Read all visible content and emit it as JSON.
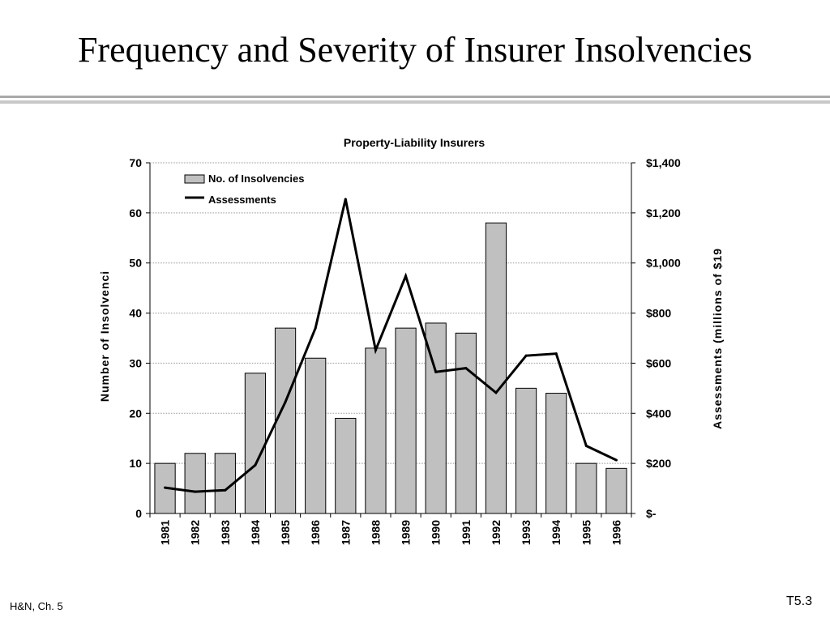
{
  "slide": {
    "title": "Frequency and Severity of Insurer Insolvencies",
    "footer_left": "H&N, Ch. 5",
    "footer_right": "T5.3"
  },
  "chart_data": {
    "type": "bar",
    "title": "Property-Liability Insurers",
    "ylabel": "Number of Insolvenci",
    "y2label": "Assessments (millions of $19",
    "categories": [
      "1981",
      "1982",
      "1983",
      "1984",
      "1985",
      "1986",
      "1987",
      "1988",
      "1989",
      "1990",
      "1991",
      "1992",
      "1993",
      "1994",
      "1995",
      "1996"
    ],
    "series": [
      {
        "name": "No. of Insolvencies",
        "type": "bar",
        "axis": "left",
        "values": [
          10,
          12,
          12,
          28,
          37,
          31,
          19,
          33,
          37,
          38,
          36,
          58,
          25,
          24,
          10,
          9
        ]
      },
      {
        "name": "Assessments",
        "type": "line",
        "axis": "right",
        "values": [
          103,
          87,
          93,
          193,
          445,
          740,
          1255,
          652,
          948,
          565,
          580,
          482,
          630,
          638,
          270,
          213
        ]
      }
    ],
    "ylim": [
      0,
      70
    ],
    "yticks": [
      0,
      10,
      20,
      30,
      40,
      50,
      60,
      70
    ],
    "y2lim": [
      0,
      1400
    ],
    "y2ticks": [
      0,
      200,
      400,
      600,
      800,
      1000,
      1200,
      1400
    ],
    "y2ticklabels": [
      "$-",
      "$200",
      "$400",
      "$600",
      "$800",
      "$1,000",
      "$1,200",
      "$1,400"
    ],
    "grid": true,
    "legend_position": "top-left",
    "colors": {
      "bar_fill": "#c0c0c0",
      "bar_stroke": "#000000",
      "line": "#000000",
      "grid": "#9a9a9a"
    }
  }
}
